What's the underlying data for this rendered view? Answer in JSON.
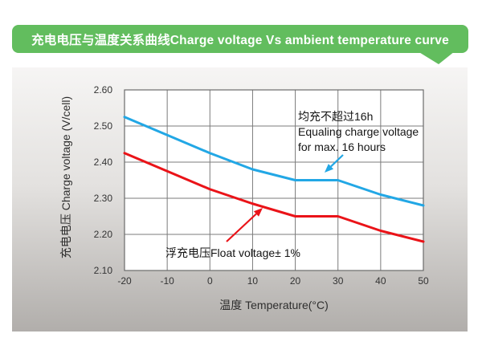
{
  "header": {
    "title": "充电电压与温度关系曲线Charge voltage Vs ambient temperature curve",
    "bg_color": "#62bd5e"
  },
  "chart_data": {
    "type": "line",
    "x": [
      -20,
      -10,
      0,
      10,
      20,
      30,
      40,
      50
    ],
    "series": [
      {
        "name": "equalize-charge",
        "label": "均充不超过16h Equaling charge voltage for max. 16 hours",
        "color": "#22a7e5",
        "values": [
          2.525,
          2.475,
          2.425,
          2.38,
          2.35,
          2.35,
          2.31,
          2.28
        ]
      },
      {
        "name": "float-voltage",
        "label": "浮充电压Float voltage± 1%",
        "color": "#ea1318",
        "values": [
          2.425,
          2.375,
          2.325,
          2.285,
          2.25,
          2.25,
          2.21,
          2.18
        ]
      }
    ],
    "xlabel": "温度 Temperature(°C)",
    "ylabel": "充电电压 Charge voltage (V/cell)",
    "xlim": [
      -20,
      50
    ],
    "ylim": [
      2.1,
      2.6
    ],
    "x_ticks": [
      "-20",
      "-10",
      "0",
      "10",
      "20",
      "30",
      "40",
      "50"
    ],
    "y_ticks": [
      "2.10",
      "2.20",
      "2.30",
      "2.40",
      "2.50",
      "2.60"
    ],
    "grid": true,
    "legend_position": "none",
    "grid_color": "#7b7b7b",
    "plot_bg": "#ffffff"
  },
  "annotations": {
    "equalize": {
      "line1": "均充不超过16h",
      "line2": "Equaling charge voltage",
      "line3": "for max. 16 hours"
    },
    "float": {
      "text": "浮充电压Float voltage± 1%"
    }
  }
}
